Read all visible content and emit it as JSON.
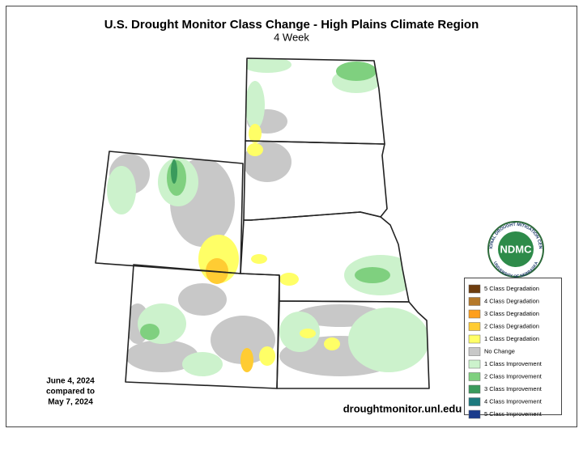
{
  "header": {
    "title": "U.S. Drought Monitor Class Change - High Plains Climate Region",
    "subtitle": "4 Week"
  },
  "dates": [
    "June 4, 2024",
    "compared to",
    "May 7, 2024"
  ],
  "website": "droughtmonitor.unl.edu",
  "logo": {
    "name": "NDMC",
    "ring_top": "NATIONAL DROUGHT MITIGATION CENTER",
    "ring_bottom": "UNIVERSITY OF NEBRASKA"
  },
  "legend": {
    "items": [
      {
        "label": "5 Class Degradation",
        "color": "#6e3d0e"
      },
      {
        "label": "4 Class Degradation",
        "color": "#b5792a"
      },
      {
        "label": "3 Class Degradation",
        "color": "#ff9f1c"
      },
      {
        "label": "2 Class Degradation",
        "color": "#ffcc33"
      },
      {
        "label": "1 Class Degradation",
        "color": "#ffff66"
      },
      {
        "label": "No Change",
        "color": "#c8c8c8"
      },
      {
        "label": "1 Class Improvement",
        "color": "#ccf2cc"
      },
      {
        "label": "2 Class Improvement",
        "color": "#7fd07f"
      },
      {
        "label": "3 Class Improvement",
        "color": "#3a9a5c"
      },
      {
        "label": "4 Class Improvement",
        "color": "#1d7a7e"
      },
      {
        "label": "5 Class Improvement",
        "color": "#1a3c8c"
      }
    ]
  }
}
